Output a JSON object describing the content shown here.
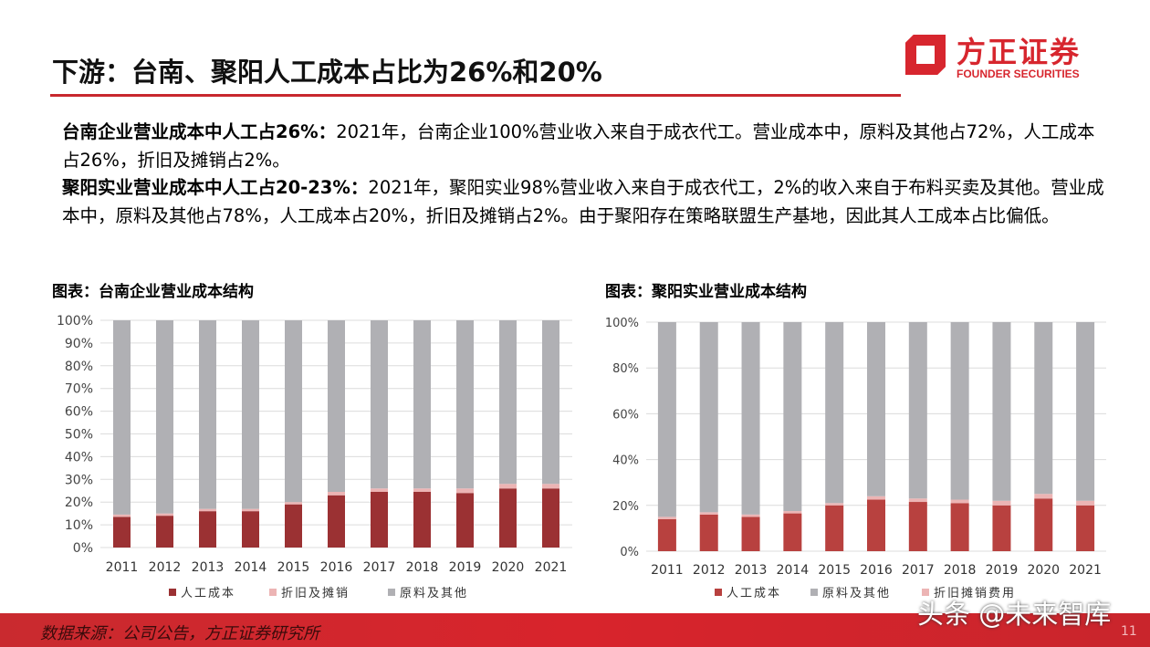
{
  "header": {
    "title": "下游：台南、聚阳人工成本占比为26%和20%",
    "logo_cn": "方正证券",
    "logo_en": "FOUNDER SECURITIES"
  },
  "text": {
    "p1_bold": "台南企业营业成本中人工占26%：",
    "p1": "2021年，台南企业100%营业收入来自于成衣代工。营业成本中，原料及其他占72%，人工成本占26%，折旧及摊销占2%。",
    "p2_bold": "聚阳实业营业成本中人工占20-23%：",
    "p2": "2021年，聚阳实业98%营业收入来自于成衣代工，2%的收入来自于布料买卖及其他。营业成本中，原料及其他占78%，人工成本占20%，折旧及摊销占2%。由于聚阳存在策略联盟生产基地，因此其人工成本占比偏低。"
  },
  "footer": {
    "source": "数据来源：公司公告，方正证券研究所",
    "watermark": "头条 @未来智库",
    "page": "11"
  },
  "chart_data": [
    {
      "type": "bar",
      "stacked": true,
      "title": "图表：台南企业营业成本结构",
      "categories": [
        "2011",
        "2012",
        "2013",
        "2014",
        "2015",
        "2016",
        "2017",
        "2018",
        "2019",
        "2020",
        "2021"
      ],
      "yticks": [
        "0%",
        "10%",
        "20%",
        "30%",
        "40%",
        "50%",
        "60%",
        "70%",
        "80%",
        "90%",
        "100%"
      ],
      "ylim": [
        0,
        100
      ],
      "grid": true,
      "legend": "bottom",
      "series": [
        {
          "name": "人工成本",
          "color": "#9b3133",
          "values": [
            13.5,
            14,
            16,
            16,
            19,
            23,
            24.5,
            24.5,
            24,
            26,
            26
          ]
        },
        {
          "name": "折旧及摊销",
          "color": "#ecb4b4",
          "values": [
            1,
            1,
            1,
            1,
            1,
            1.5,
            1.5,
            1.5,
            2,
            2,
            2
          ]
        },
        {
          "name": "原料及其他",
          "color": "#b0b0b4",
          "values": [
            85.5,
            85,
            83,
            83,
            80,
            75.5,
            74,
            74,
            74,
            72,
            72
          ]
        }
      ],
      "legend_order": [
        0,
        1,
        2
      ]
    },
    {
      "type": "bar",
      "stacked": true,
      "title": "图表：聚阳实业营业成本结构",
      "categories": [
        "2011",
        "2012",
        "2013",
        "2014",
        "2015",
        "2016",
        "2017",
        "2018",
        "2019",
        "2020",
        "2021"
      ],
      "yticks": [
        "0%",
        "20%",
        "40%",
        "60%",
        "80%",
        "100%"
      ],
      "ylim": [
        0,
        100
      ],
      "grid": true,
      "legend": "bottom",
      "series": [
        {
          "name": "人工成本",
          "color": "#b8413f",
          "values": [
            14,
            16,
            15,
            16.5,
            20,
            22.5,
            21.5,
            21,
            20,
            23,
            20
          ]
        },
        {
          "name": "折旧摊销费用",
          "color": "#ecb4b4",
          "values": [
            1,
            1,
            1,
            1,
            1,
            1.5,
            1.5,
            1.5,
            2,
            2,
            2
          ]
        },
        {
          "name": "原料及其他",
          "color": "#b0b0b4",
          "values": [
            85,
            83,
            84,
            82.5,
            79,
            76,
            77,
            77.5,
            78,
            75,
            78
          ]
        }
      ],
      "legend_order": [
        0,
        2,
        1
      ]
    }
  ]
}
